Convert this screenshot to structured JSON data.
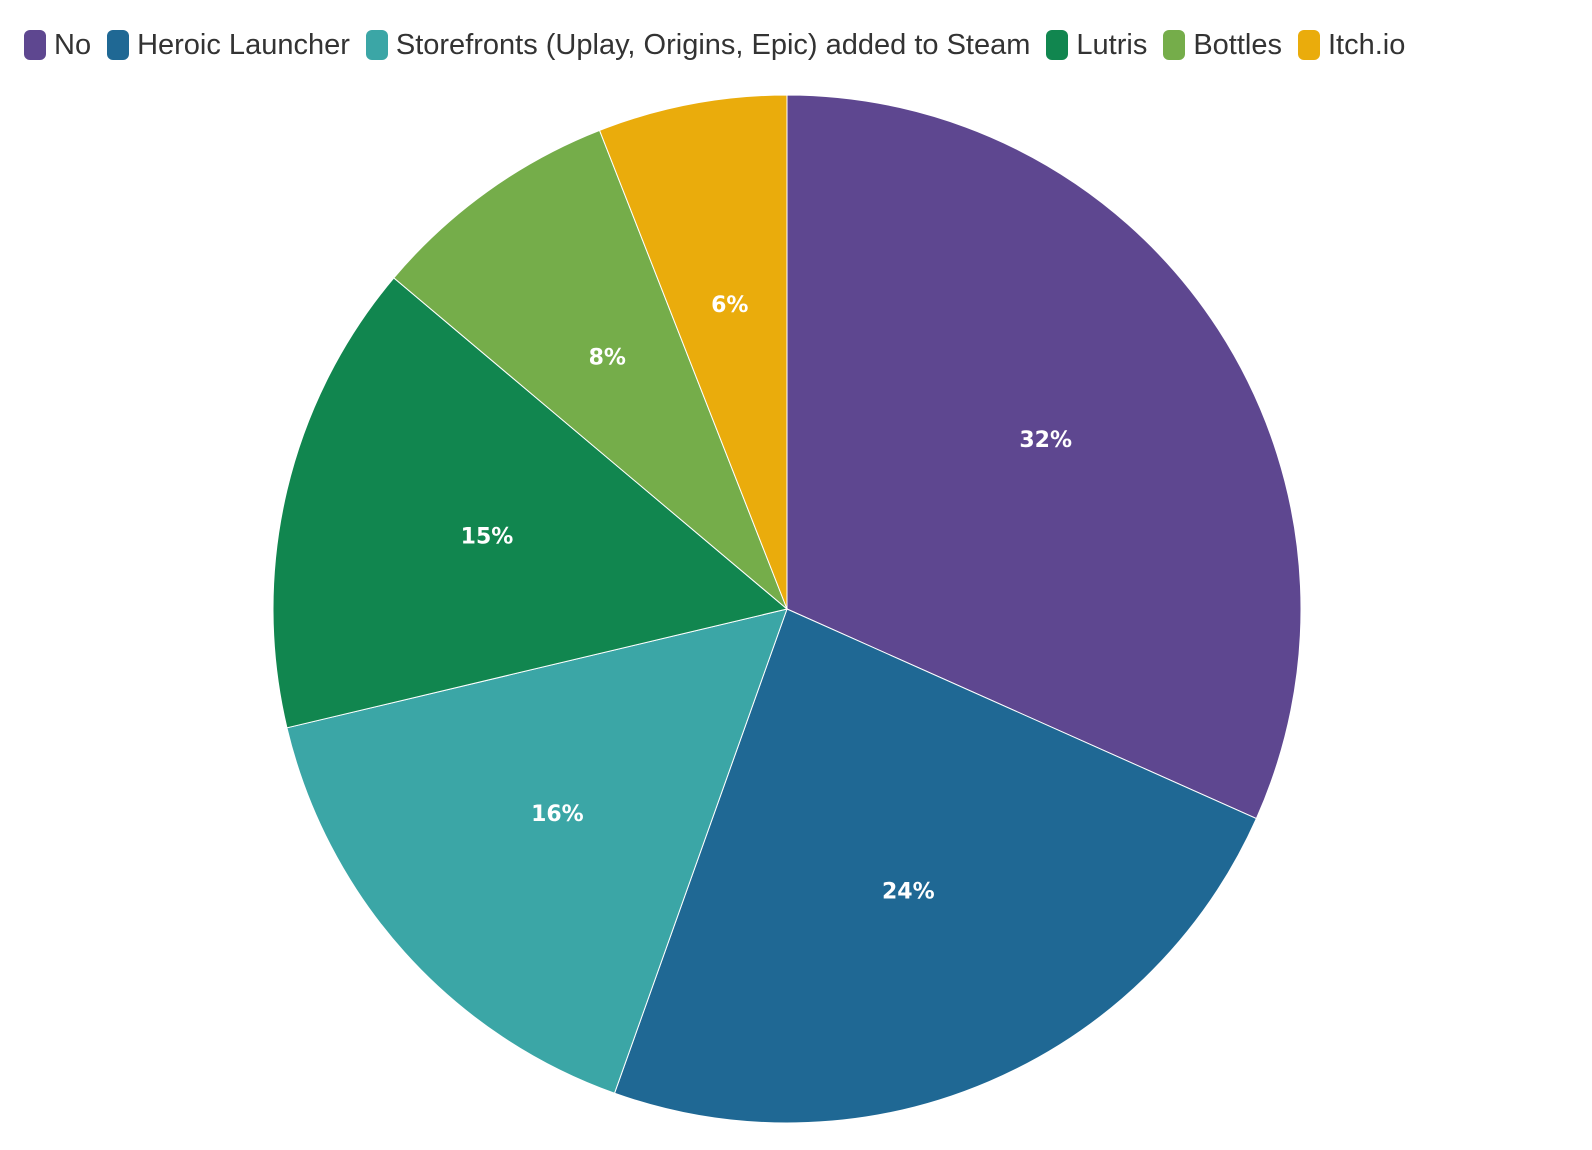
{
  "chart_data": {
    "type": "pie",
    "categories": [
      "No",
      "Heroic Launcher",
      "Storefronts (Uplay, Origins, Epic) added to Steam",
      "Lutris",
      "Bottles",
      "Itch.io"
    ],
    "values": [
      32,
      24,
      16,
      15,
      8,
      6
    ],
    "labels": [
      "32%",
      "24%",
      "16%",
      "15%",
      "8%",
      "6%"
    ],
    "colors": [
      "#5e4790",
      "#1f6894",
      "#3ba6a6",
      "#11864f",
      "#75ad4a",
      "#eaac0c"
    ],
    "legend_position": "top-left"
  }
}
